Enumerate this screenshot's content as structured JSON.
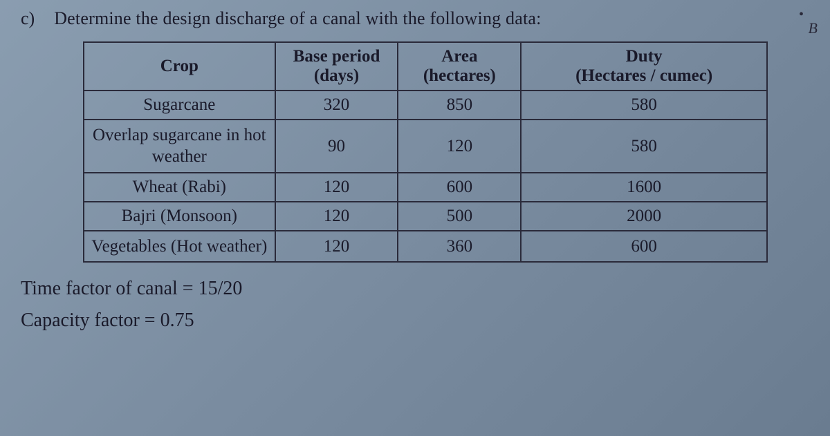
{
  "question": {
    "label": "c)",
    "text": "Determine the design discharge of a canal with the following data:"
  },
  "table": {
    "columns": [
      {
        "line1": "Crop",
        "line2": ""
      },
      {
        "line1": "Base period",
        "line2": "(days)"
      },
      {
        "line1": "Area",
        "line2": "(hectares)"
      },
      {
        "line1": "Duty",
        "line2": "(Hectares / cumec)"
      }
    ],
    "rows": [
      {
        "crop": "Sugarcane",
        "base": "320",
        "area": "850",
        "duty": "580",
        "two_line": false
      },
      {
        "crop": "Overlap sugarcane in hot weather",
        "base": "90",
        "area": "120",
        "duty": "580",
        "two_line": true
      },
      {
        "crop": "Wheat (Rabi)",
        "base": "120",
        "area": "600",
        "duty": "1600",
        "two_line": false
      },
      {
        "crop": "Bajri (Monsoon)",
        "base": "120",
        "area": "500",
        "duty": "2000",
        "two_line": false
      },
      {
        "crop": "Vegetables (Hot weather)",
        "base": "120",
        "area": "360",
        "duty": "600",
        "two_line": true
      }
    ],
    "border_color": "#2a2a3a",
    "text_color": "#1a1a2a",
    "header_font_weight": "bold",
    "cell_fontsize": 25
  },
  "footer": {
    "line1": "Time factor of canal = 15/20",
    "line2": "Capacity factor = 0.75"
  },
  "marks": {
    "scribble": "B",
    "dot": "•"
  },
  "style": {
    "background_gradient_start": "#8a9db0",
    "background_gradient_end": "#6a7c90",
    "font_family": "Georgia, Times New Roman, serif"
  }
}
